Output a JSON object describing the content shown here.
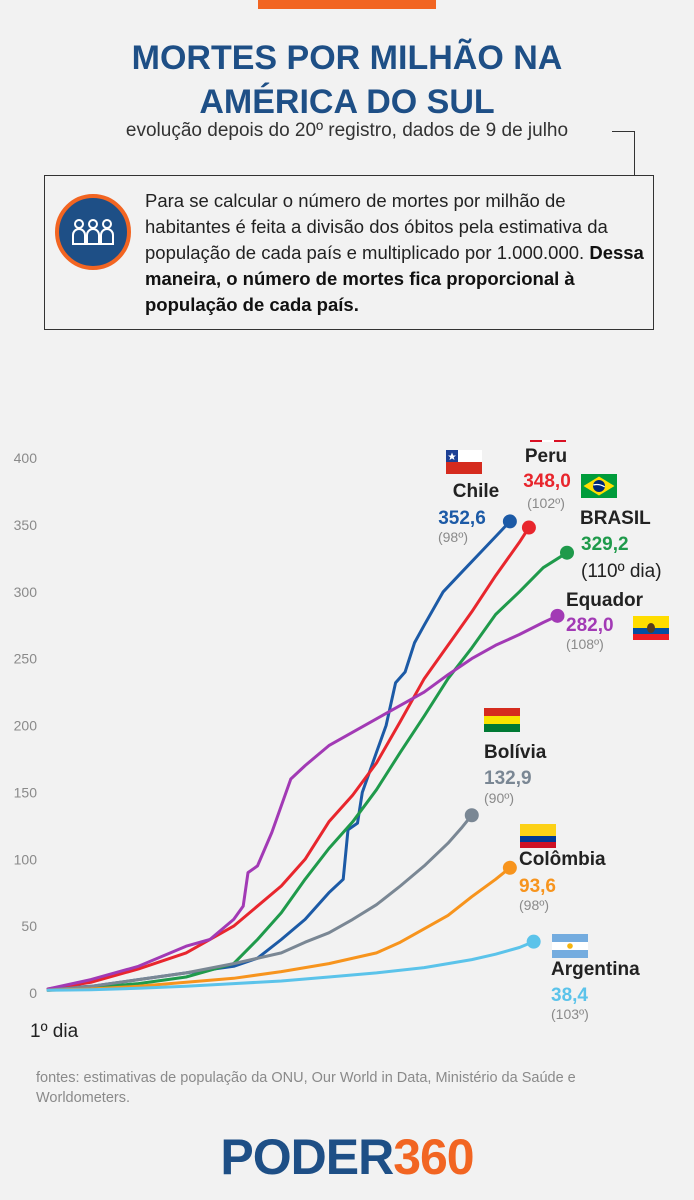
{
  "header": {
    "title_line1": "MORTES POR MILHÃO NA",
    "title_line2": "AMÉRICA DO SUL",
    "subtitle": "evolução depois do 20º registro, dados de 9 de julho"
  },
  "info": {
    "icon": "people-icon",
    "text_normal": "Para se calcular o número de mortes por milhão de habitantes é feita a divisão dos óbitos pela estimativa da população de cada país e multiplicado por 1.000.000.",
    "text_bold": "Dessa maneira, o número de mortes fica proporcional à população de cada país."
  },
  "colors": {
    "accent_orange": "#f26522",
    "brand_blue": "#1e4f86"
  },
  "chart_data": {
    "type": "line",
    "x_start_label": "1º dia",
    "ylim": [
      0,
      400
    ],
    "yticks": [
      0,
      50,
      100,
      150,
      200,
      250,
      300,
      350,
      400
    ],
    "xlim": [
      1,
      110
    ],
    "grid": false,
    "series": [
      {
        "name": "Chile",
        "value_label": "352,6",
        "days_label": "(98º)",
        "color": "#1c5aa6",
        "flag": "chile",
        "x": [
          1,
          10,
          20,
          30,
          40,
          45,
          50,
          55,
          60,
          63,
          64,
          66,
          67,
          70,
          72,
          74,
          76,
          78,
          80,
          84,
          88,
          92,
          96,
          98
        ],
        "y": [
          3,
          5,
          10,
          15,
          20,
          26,
          40,
          55,
          75,
          85,
          122,
          127,
          150,
          180,
          200,
          232,
          240,
          262,
          275,
          300,
          315,
          330,
          345,
          352.6
        ]
      },
      {
        "name": "Peru",
        "value_label": "348,0",
        "days_label": "(102º)",
        "color": "#e8262d",
        "flag": "peru",
        "x": [
          1,
          10,
          20,
          30,
          40,
          50,
          55,
          60,
          65,
          70,
          75,
          80,
          85,
          90,
          95,
          100,
          102
        ],
        "y": [
          3,
          8,
          18,
          30,
          50,
          80,
          100,
          128,
          148,
          172,
          203,
          235,
          260,
          285,
          312,
          337,
          348
        ]
      },
      {
        "name": "BRASIL",
        "value_label": "329,2",
        "days_label": "(110º dia)",
        "color": "#1f9a4b",
        "flag": "brazil",
        "x": [
          1,
          10,
          20,
          30,
          40,
          45,
          50,
          55,
          60,
          65,
          70,
          75,
          80,
          85,
          90,
          95,
          100,
          105,
          110
        ],
        "y": [
          2,
          4,
          7,
          12,
          22,
          40,
          60,
          85,
          108,
          128,
          152,
          180,
          207,
          235,
          258,
          283,
          300,
          318,
          329.2
        ]
      },
      {
        "name": "Equador",
        "value_label": "282,0",
        "days_label": "(108º)",
        "color": "#a23ab5",
        "flag": "ecuador",
        "x": [
          1,
          10,
          20,
          30,
          35,
          40,
          42,
          43,
          45,
          48,
          50,
          52,
          55,
          60,
          65,
          70,
          75,
          80,
          85,
          90,
          95,
          100,
          105,
          108
        ],
        "y": [
          3,
          10,
          20,
          35,
          40,
          55,
          65,
          90,
          95,
          120,
          140,
          160,
          170,
          185,
          195,
          205,
          215,
          225,
          238,
          250,
          260,
          268,
          277,
          282
        ]
      },
      {
        "name": "Bolívia",
        "value_label": "132,9",
        "days_label": "(90º)",
        "color": "#7a8794",
        "flag": "bolivia",
        "x": [
          1,
          10,
          20,
          30,
          40,
          50,
          55,
          60,
          65,
          70,
          75,
          80,
          85,
          88,
          90
        ],
        "y": [
          2,
          5,
          10,
          15,
          22,
          30,
          38,
          45,
          55,
          66,
          80,
          95,
          112,
          124,
          132.9
        ]
      },
      {
        "name": "Colômbia",
        "value_label": "93,6",
        "days_label": "(98º)",
        "color": "#f7941d",
        "flag": "colombia",
        "x": [
          1,
          10,
          20,
          30,
          40,
          50,
          60,
          70,
          75,
          80,
          85,
          90,
          95,
          98
        ],
        "y": [
          2,
          3,
          5,
          8,
          11,
          16,
          22,
          30,
          38,
          48,
          58,
          72,
          85,
          93.6
        ]
      },
      {
        "name": "Argentina",
        "value_label": "38,4",
        "days_label": "(103º)",
        "color": "#5bc3ea",
        "flag": "argentina",
        "x": [
          1,
          10,
          20,
          30,
          40,
          50,
          60,
          70,
          80,
          90,
          95,
          100,
          103
        ],
        "y": [
          2,
          2.5,
          3.5,
          5,
          7,
          9,
          12,
          15,
          19,
          25,
          29,
          34,
          38.4
        ]
      }
    ]
  },
  "sources": "fontes: estimativas de população da ONU, Our World in Data, Ministério da Saúde e Worldometers.",
  "logo": {
    "part1": "PODER",
    "part2": "360"
  }
}
